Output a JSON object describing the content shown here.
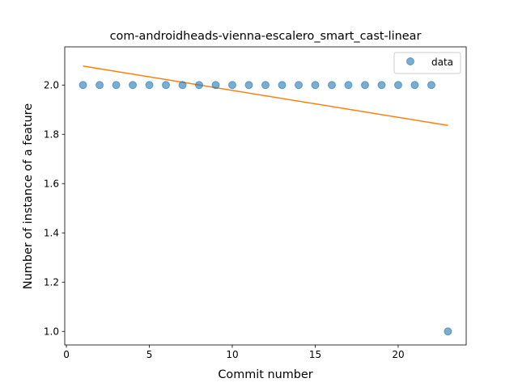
{
  "chart_data": {
    "type": "scatter",
    "title": "com-androidheads-vienna-escalero_smart_cast-linear",
    "xlabel": "Commit number",
    "ylabel": "Number of instance of a feature",
    "xlim": [
      -0.1,
      24.1
    ],
    "ylim": [
      0.945,
      2.155
    ],
    "xticks": [
      0,
      5,
      10,
      15,
      20
    ],
    "xtick_labels": [
      "0",
      "5",
      "10",
      "15",
      "20"
    ],
    "yticks": [
      1.0,
      1.2,
      1.4,
      1.6,
      1.8,
      2.0
    ],
    "ytick_labels": [
      "1.0",
      "1.2",
      "1.4",
      "1.6",
      "1.8",
      "2.0"
    ],
    "grid": false,
    "legend": {
      "position": "top-right",
      "entries": [
        "data"
      ]
    },
    "series": [
      {
        "name": "data",
        "kind": "scatter",
        "color": "#1f77b4",
        "x": [
          1,
          2,
          3,
          4,
          5,
          6,
          7,
          8,
          9,
          10,
          11,
          12,
          13,
          14,
          15,
          16,
          17,
          18,
          19,
          20,
          21,
          22,
          23
        ],
        "y": [
          2,
          2,
          2,
          2,
          2,
          2,
          2,
          2,
          2,
          2,
          2,
          2,
          2,
          2,
          2,
          2,
          2,
          2,
          2,
          2,
          2,
          2,
          1
        ]
      },
      {
        "kind": "line",
        "color": "#ff7f0e",
        "x": [
          1,
          23
        ],
        "y": [
          2.077,
          1.836
        ]
      }
    ]
  }
}
